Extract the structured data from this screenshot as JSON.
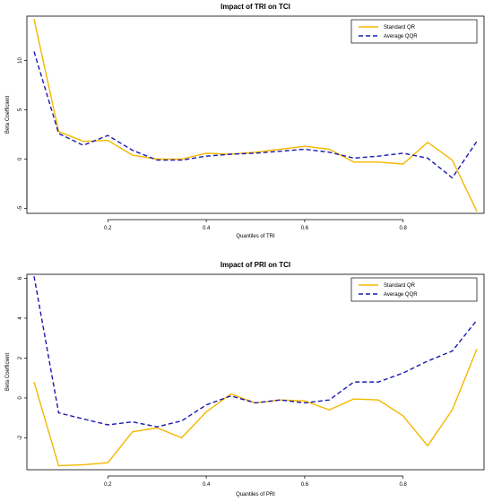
{
  "chart_data": [
    {
      "type": "line",
      "title": "Impact of TRI on TCI",
      "xlabel": "Quantiles of TRI",
      "ylabel": "Beta Coefficient",
      "xlim": [
        0.05,
        0.95
      ],
      "ylim": [
        -5.5,
        14.5
      ],
      "xticks": [
        0.2,
        0.4,
        0.6,
        0.8
      ],
      "xtick_labels": [
        "0.2",
        "0.4",
        "0.6",
        "0.8"
      ],
      "yticks": [
        -5,
        0,
        5,
        10
      ],
      "ytick_labels": [
        "-5",
        "0",
        "5",
        "10"
      ],
      "legend_position": "top-right",
      "x": [
        0.05,
        0.1,
        0.15,
        0.2,
        0.25,
        0.3,
        0.35,
        0.4,
        0.45,
        0.5,
        0.55,
        0.6,
        0.65,
        0.7,
        0.75,
        0.8,
        0.85,
        0.9,
        0.95
      ],
      "series": [
        {
          "name": "Standard QR",
          "color": "#f5b700",
          "style": "solid",
          "values": [
            14.2,
            2.8,
            1.8,
            1.9,
            0.4,
            0.0,
            0.0,
            0.6,
            0.5,
            0.7,
            1.0,
            1.3,
            1.0,
            -0.3,
            -0.3,
            -0.5,
            1.7,
            -0.1,
            -5.3
          ]
        },
        {
          "name": "Average QQR",
          "color": "#1a1ab0",
          "style": "dashed",
          "values": [
            10.9,
            2.6,
            1.4,
            2.4,
            0.9,
            -0.1,
            -0.1,
            0.3,
            0.5,
            0.6,
            0.8,
            1.0,
            0.7,
            0.1,
            0.3,
            0.6,
            0.1,
            -1.9,
            1.8
          ]
        }
      ]
    },
    {
      "type": "line",
      "title": "Impact of PRI on TCI",
      "xlabel": "Quantiles of PRI",
      "ylabel": "Beta Coefficient",
      "xlim": [
        0.05,
        0.95
      ],
      "ylim": [
        -3.6,
        6.2
      ],
      "xticks": [
        0.2,
        0.4,
        0.6,
        0.8
      ],
      "xtick_labels": [
        "0.2",
        "0.4",
        "0.6",
        "0.8"
      ],
      "yticks": [
        -2,
        0,
        2,
        4,
        6
      ],
      "ytick_labels": [
        "-2",
        "0",
        "2",
        "4",
        "6"
      ],
      "legend_position": "top-right",
      "x": [
        0.05,
        0.1,
        0.15,
        0.2,
        0.25,
        0.3,
        0.35,
        0.4,
        0.45,
        0.5,
        0.55,
        0.6,
        0.65,
        0.7,
        0.75,
        0.8,
        0.85,
        0.9,
        0.95
      ],
      "series": [
        {
          "name": "Standard QR",
          "color": "#f5b700",
          "style": "solid",
          "values": [
            0.8,
            -3.4,
            -3.35,
            -3.25,
            -1.7,
            -1.5,
            -2.0,
            -0.7,
            0.2,
            -0.25,
            -0.1,
            -0.15,
            -0.6,
            -0.05,
            -0.1,
            -0.9,
            -2.4,
            -0.6,
            2.45
          ]
        },
        {
          "name": "Average QQR",
          "color": "#1a1ab0",
          "style": "dashed",
          "values": [
            6.1,
            -0.75,
            -1.05,
            -1.35,
            -1.2,
            -1.45,
            -1.15,
            -0.35,
            0.1,
            -0.25,
            -0.1,
            -0.25,
            -0.1,
            0.8,
            0.8,
            1.25,
            1.85,
            2.35,
            3.9
          ]
        }
      ]
    }
  ]
}
